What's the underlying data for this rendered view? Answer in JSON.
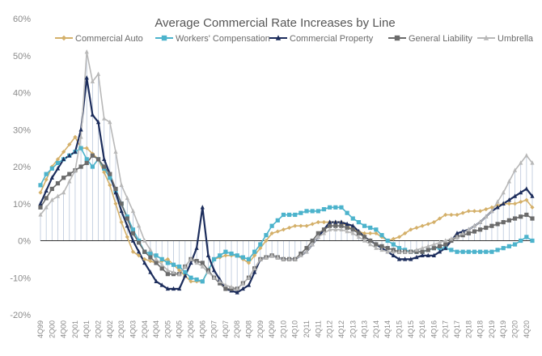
{
  "chart_data": {
    "type": "line",
    "title": "Average Commercial Rate Increases by Line",
    "xlabel": "",
    "ylabel": "",
    "ylim": [
      -20,
      60
    ],
    "yticks": [
      "-20%",
      "-10%",
      "0%",
      "10%",
      "20%",
      "30%",
      "40%",
      "50%",
      "60%"
    ],
    "yticks_values": [
      -20,
      -10,
      0,
      10,
      20,
      30,
      40,
      50,
      60
    ],
    "legend_position": "top",
    "grid": false,
    "x_tick_labels": [
      "4Q99",
      "2Q00",
      "4Q00",
      "2Q01",
      "4Q01",
      "2Q02",
      "4Q02",
      "2Q03",
      "4Q03",
      "2Q04",
      "4Q04",
      "2Q05",
      "4Q05",
      "2Q06",
      "4Q06",
      "2Q07",
      "4Q07",
      "2Q08",
      "4Q08",
      "2Q09",
      "4Q09",
      "2Q10",
      "4Q10",
      "2Q11",
      "4Q11",
      "2Q12",
      "4Q12",
      "2Q13",
      "4Q13",
      "2Q14",
      "4Q14",
      "2Q15",
      "4Q15",
      "2Q16",
      "4Q16",
      "2Q17",
      "4Q17",
      "2Q18",
      "4Q18",
      "2Q19",
      "4Q19",
      "2Q20",
      "4Q20"
    ],
    "series": [
      {
        "name": "Commercial Auto",
        "color": "#d4b06a",
        "marker": "diamond",
        "anchors": [
          [
            0,
            13
          ],
          [
            2,
            20
          ],
          [
            4,
            24
          ],
          [
            6,
            28
          ],
          [
            7,
            25
          ],
          [
            8,
            25
          ],
          [
            10,
            22
          ],
          [
            12,
            15
          ],
          [
            14,
            5
          ],
          [
            16,
            -3
          ],
          [
            18,
            -5
          ],
          [
            20,
            -6
          ],
          [
            22,
            -5
          ],
          [
            24,
            -8
          ],
          [
            26,
            -11
          ],
          [
            28,
            -11
          ],
          [
            30,
            -5
          ],
          [
            32,
            -4
          ],
          [
            34,
            -4
          ],
          [
            36,
            -6
          ],
          [
            38,
            -2
          ],
          [
            40,
            2
          ],
          [
            42,
            3
          ],
          [
            44,
            4
          ],
          [
            46,
            4
          ],
          [
            48,
            5
          ],
          [
            50,
            5
          ],
          [
            52,
            5
          ],
          [
            54,
            3
          ],
          [
            56,
            2
          ],
          [
            58,
            2
          ],
          [
            60,
            0
          ],
          [
            62,
            1
          ],
          [
            64,
            3
          ],
          [
            66,
            4
          ],
          [
            68,
            5
          ],
          [
            70,
            7
          ],
          [
            72,
            7
          ],
          [
            74,
            8
          ],
          [
            76,
            8
          ],
          [
            78,
            9
          ],
          [
            80,
            10
          ],
          [
            82,
            10
          ],
          [
            84,
            11
          ],
          [
            85,
            9
          ]
        ]
      },
      {
        "name": "Workers' Compensation",
        "color": "#4cb3cc",
        "marker": "square",
        "anchors": [
          [
            0,
            15
          ],
          [
            1,
            18
          ],
          [
            3,
            21
          ],
          [
            5,
            23
          ],
          [
            7,
            25
          ],
          [
            8,
            22
          ],
          [
            9,
            20
          ],
          [
            10,
            22
          ],
          [
            12,
            17
          ],
          [
            14,
            10
          ],
          [
            16,
            3
          ],
          [
            18,
            -3
          ],
          [
            20,
            -4
          ],
          [
            22,
            -6
          ],
          [
            24,
            -7
          ],
          [
            26,
            -10
          ],
          [
            28,
            -11
          ],
          [
            30,
            -5
          ],
          [
            32,
            -3
          ],
          [
            34,
            -4
          ],
          [
            36,
            -5
          ],
          [
            38,
            -1
          ],
          [
            40,
            4
          ],
          [
            42,
            7
          ],
          [
            44,
            7
          ],
          [
            46,
            8
          ],
          [
            48,
            8
          ],
          [
            50,
            9
          ],
          [
            52,
            9
          ],
          [
            54,
            6
          ],
          [
            56,
            4
          ],
          [
            58,
            3
          ],
          [
            60,
            0
          ],
          [
            62,
            -2
          ],
          [
            64,
            -3
          ],
          [
            66,
            -3
          ],
          [
            68,
            -2
          ],
          [
            70,
            -2
          ],
          [
            72,
            -3
          ],
          [
            74,
            -3
          ],
          [
            76,
            -3
          ],
          [
            78,
            -3
          ],
          [
            80,
            -2
          ],
          [
            82,
            -1
          ],
          [
            84,
            1
          ],
          [
            85,
            0
          ]
        ]
      },
      {
        "name": "Commercial Property",
        "color": "#1c2d5c",
        "marker": "triangle",
        "anchors": [
          [
            0,
            10
          ],
          [
            2,
            17
          ],
          [
            4,
            22
          ],
          [
            6,
            24
          ],
          [
            7,
            30
          ],
          [
            8,
            44
          ],
          [
            9,
            34
          ],
          [
            10,
            32
          ],
          [
            11,
            22
          ],
          [
            12,
            18
          ],
          [
            14,
            8
          ],
          [
            16,
            0
          ],
          [
            18,
            -6
          ],
          [
            20,
            -11
          ],
          [
            22,
            -13
          ],
          [
            24,
            -13
          ],
          [
            26,
            -6
          ],
          [
            27,
            -2
          ],
          [
            28,
            9
          ],
          [
            29,
            -4
          ],
          [
            30,
            -8
          ],
          [
            32,
            -13
          ],
          [
            34,
            -14
          ],
          [
            36,
            -12
          ],
          [
            38,
            -5
          ],
          [
            40,
            -4
          ],
          [
            42,
            -5
          ],
          [
            44,
            -5
          ],
          [
            46,
            -3
          ],
          [
            48,
            1
          ],
          [
            50,
            5
          ],
          [
            52,
            5
          ],
          [
            54,
            4
          ],
          [
            56,
            1
          ],
          [
            58,
            -1
          ],
          [
            60,
            -3
          ],
          [
            62,
            -5
          ],
          [
            64,
            -5
          ],
          [
            66,
            -4
          ],
          [
            68,
            -4
          ],
          [
            70,
            -2
          ],
          [
            72,
            2
          ],
          [
            74,
            3
          ],
          [
            76,
            5
          ],
          [
            78,
            8
          ],
          [
            80,
            10
          ],
          [
            82,
            12
          ],
          [
            84,
            14
          ],
          [
            85,
            12
          ]
        ]
      },
      {
        "name": "General Liability",
        "color": "#6b6b6b",
        "marker": "square",
        "anchors": [
          [
            0,
            9
          ],
          [
            2,
            14
          ],
          [
            4,
            17
          ],
          [
            6,
            19
          ],
          [
            7,
            20
          ],
          [
            8,
            21
          ],
          [
            9,
            23
          ],
          [
            10,
            22
          ],
          [
            12,
            18
          ],
          [
            14,
            10
          ],
          [
            16,
            2
          ],
          [
            18,
            -3
          ],
          [
            20,
            -6
          ],
          [
            22,
            -9
          ],
          [
            24,
            -9
          ],
          [
            26,
            -5
          ],
          [
            28,
            -6
          ],
          [
            30,
            -10
          ],
          [
            32,
            -13
          ],
          [
            34,
            -13
          ],
          [
            36,
            -10
          ],
          [
            38,
            -5
          ],
          [
            40,
            -4
          ],
          [
            42,
            -5
          ],
          [
            44,
            -5
          ],
          [
            46,
            -2
          ],
          [
            48,
            2
          ],
          [
            50,
            4
          ],
          [
            52,
            4
          ],
          [
            54,
            3
          ],
          [
            56,
            1
          ],
          [
            58,
            -1
          ],
          [
            60,
            -2
          ],
          [
            62,
            -3
          ],
          [
            64,
            -3
          ],
          [
            66,
            -3
          ],
          [
            68,
            -2
          ],
          [
            70,
            -1
          ],
          [
            72,
            1
          ],
          [
            74,
            2
          ],
          [
            76,
            3
          ],
          [
            78,
            4
          ],
          [
            80,
            5
          ],
          [
            82,
            6
          ],
          [
            84,
            7
          ],
          [
            85,
            6
          ]
        ]
      },
      {
        "name": "Umbrella",
        "color": "#b8b8b8",
        "marker": "triangle",
        "anchors": [
          [
            0,
            7
          ],
          [
            2,
            11
          ],
          [
            4,
            13
          ],
          [
            6,
            19
          ],
          [
            7,
            28
          ],
          [
            8,
            51
          ],
          [
            9,
            43
          ],
          [
            10,
            45
          ],
          [
            11,
            33
          ],
          [
            12,
            32
          ],
          [
            13,
            24
          ],
          [
            14,
            15
          ],
          [
            16,
            8
          ],
          [
            18,
            0
          ],
          [
            20,
            -5
          ],
          [
            22,
            -8
          ],
          [
            24,
            -9
          ],
          [
            26,
            -5
          ],
          [
            28,
            -7
          ],
          [
            30,
            -10
          ],
          [
            32,
            -12
          ],
          [
            34,
            -13
          ],
          [
            36,
            -10
          ],
          [
            38,
            -5
          ],
          [
            40,
            -4
          ],
          [
            42,
            -5
          ],
          [
            44,
            -5
          ],
          [
            46,
            -3
          ],
          [
            48,
            1
          ],
          [
            50,
            3
          ],
          [
            52,
            3
          ],
          [
            54,
            2
          ],
          [
            56,
            0
          ],
          [
            58,
            -2
          ],
          [
            60,
            -3
          ],
          [
            62,
            -3
          ],
          [
            64,
            -3
          ],
          [
            66,
            -2
          ],
          [
            68,
            -1
          ],
          [
            70,
            0
          ],
          [
            72,
            1
          ],
          [
            74,
            3
          ],
          [
            76,
            5
          ],
          [
            78,
            8
          ],
          [
            80,
            13
          ],
          [
            82,
            19
          ],
          [
            84,
            23
          ],
          [
            85,
            21
          ]
        ]
      }
    ]
  }
}
